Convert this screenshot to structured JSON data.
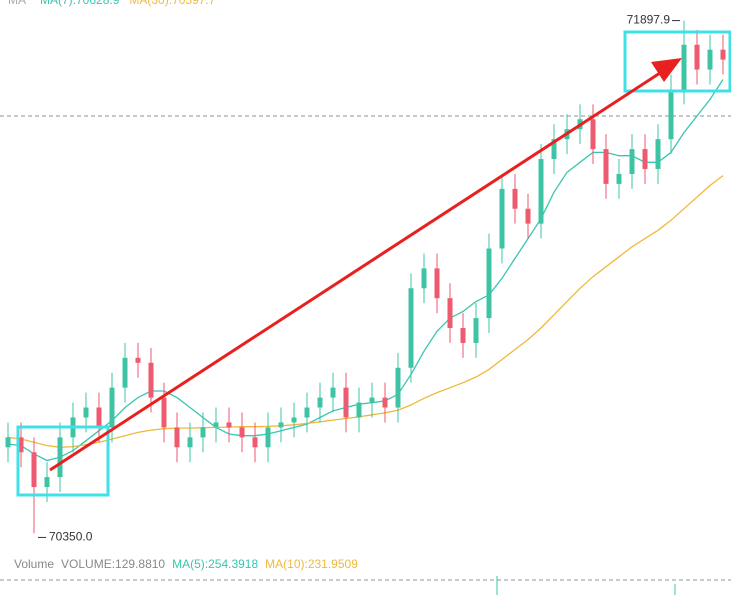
{
  "chart_data": {
    "type": "candlestick",
    "ylim": [
      70300,
      71960
    ],
    "up_color": "#3ec4a4",
    "down_color": "#ee5a6f",
    "last_price": 71610,
    "legend_title": "MA",
    "series": [
      {
        "name": "MA(7):70628.9",
        "color": "#39c6b0",
        "values": [
          70620,
          70615,
          70590,
          70570,
          70580,
          70600,
          70630,
          70660,
          70690,
          70730,
          70760,
          70780,
          70780,
          70760,
          70730,
          70700,
          70670,
          70650,
          70645,
          70645,
          70650,
          70660,
          70670,
          70680,
          70700,
          70720,
          70730,
          70740,
          70745,
          70750,
          70770,
          70830,
          70900,
          70960,
          71000,
          71020,
          71050,
          71070,
          71120,
          71180,
          71240,
          71300,
          71380,
          71440,
          71470,
          71500,
          71500,
          71490,
          71490,
          71470,
          71470,
          71500,
          71560,
          71610,
          71660,
          71720
        ]
      },
      {
        "name": "MA(30):70597.7",
        "color": "#f0b93a",
        "values": [
          70640,
          70635,
          70625,
          70615,
          70610,
          70612,
          70618,
          70625,
          70635,
          70645,
          70655,
          70662,
          70666,
          70668,
          70668,
          70669,
          70670,
          70671,
          70672,
          70672,
          70673,
          70675,
          70678,
          70682,
          70687,
          70692,
          70697,
          70702,
          70708,
          70714,
          70722,
          70738,
          70758,
          70775,
          70790,
          70805,
          70822,
          70845,
          70875,
          70905,
          70935,
          70970,
          71010,
          71050,
          71090,
          71125,
          71155,
          71185,
          71215,
          71240,
          71265,
          71295,
          71330,
          71365,
          71400,
          71430
        ]
      }
    ],
    "candles": [
      [
        70610,
        70685,
        70565,
        70640
      ],
      [
        70640,
        70685,
        70550,
        70595
      ],
      [
        70595,
        70640,
        70350,
        70490
      ],
      [
        70490,
        70565,
        70445,
        70520
      ],
      [
        70520,
        70685,
        70475,
        70640
      ],
      [
        70640,
        70745,
        70595,
        70700
      ],
      [
        70700,
        70775,
        70655,
        70730
      ],
      [
        70730,
        70775,
        70625,
        70670
      ],
      [
        70670,
        70835,
        70625,
        70790
      ],
      [
        70790,
        70925,
        70745,
        70880
      ],
      [
        70880,
        70925,
        70820,
        70865
      ],
      [
        70865,
        70910,
        70715,
        70760
      ],
      [
        70760,
        70805,
        70625,
        70670
      ],
      [
        70670,
        70715,
        70565,
        70610
      ],
      [
        70610,
        70685,
        70565,
        70640
      ],
      [
        70640,
        70715,
        70595,
        70670
      ],
      [
        70670,
        70730,
        70625,
        70685
      ],
      [
        70685,
        70730,
        70625,
        70670
      ],
      [
        70670,
        70715,
        70595,
        70640
      ],
      [
        70640,
        70685,
        70565,
        70610
      ],
      [
        70610,
        70715,
        70565,
        70670
      ],
      [
        70670,
        70730,
        70625,
        70685
      ],
      [
        70685,
        70745,
        70640,
        70700
      ],
      [
        70700,
        70775,
        70655,
        70730
      ],
      [
        70730,
        70805,
        70685,
        70760
      ],
      [
        70760,
        70835,
        70715,
        70790
      ],
      [
        70790,
        70835,
        70655,
        70700
      ],
      [
        70700,
        70790,
        70655,
        70745
      ],
      [
        70745,
        70805,
        70700,
        70760
      ],
      [
        70760,
        70805,
        70685,
        70730
      ],
      [
        70730,
        70895,
        70685,
        70850
      ],
      [
        70850,
        71135,
        70805,
        71090
      ],
      [
        71090,
        71195,
        71045,
        71150
      ],
      [
        71150,
        71195,
        71015,
        71060
      ],
      [
        71060,
        71105,
        70925,
        70970
      ],
      [
        70970,
        71015,
        70880,
        70925
      ],
      [
        70925,
        71045,
        70880,
        71000
      ],
      [
        71000,
        71255,
        70955,
        71210
      ],
      [
        71210,
        71435,
        71165,
        71390
      ],
      [
        71390,
        71435,
        71285,
        71330
      ],
      [
        71330,
        71375,
        71240,
        71285
      ],
      [
        71285,
        71525,
        71240,
        71480
      ],
      [
        71480,
        71585,
        71435,
        71540
      ],
      [
        71540,
        71615,
        71495,
        71570
      ],
      [
        71570,
        71645,
        71525,
        71600
      ],
      [
        71600,
        71645,
        71465,
        71510
      ],
      [
        71510,
        71555,
        71360,
        71405
      ],
      [
        71405,
        71480,
        71360,
        71435
      ],
      [
        71435,
        71555,
        71390,
        71510
      ],
      [
        71510,
        71555,
        71405,
        71450
      ],
      [
        71450,
        71585,
        71405,
        71540
      ],
      [
        71540,
        71735,
        71495,
        71690
      ],
      [
        71690,
        71897.9,
        71645,
        71825
      ],
      [
        71825,
        71870,
        71705,
        71750
      ],
      [
        71750,
        71855,
        71705,
        71810
      ],
      [
        71810,
        71855,
        71735,
        71780
      ]
    ],
    "annotations": [
      {
        "index": 52,
        "value": 71897.9,
        "label": "71897.9"
      },
      {
        "index": 2,
        "value": 70350,
        "label": "70350.0"
      }
    ],
    "volume_legend": [
      {
        "text": "Volume",
        "color": "#888888"
      },
      {
        "text": "VOLUME:129.8810",
        "color": "#888888"
      },
      {
        "text": "MA(5):254.3918",
        "color": "#39c6b0"
      },
      {
        "text": "MA(10):231.9509",
        "color": "#f0b93a"
      }
    ]
  }
}
